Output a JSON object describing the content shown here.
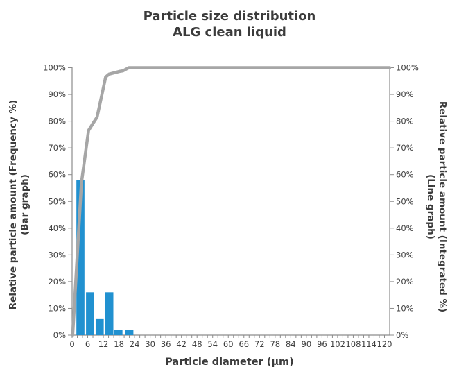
{
  "title": {
    "line1": "Particle size distribution",
    "line2": "ALG clean liquid"
  },
  "axes": {
    "x_title": "Particle diameter (μm)",
    "y_left_title_line1": "Relative particle amount (Frequency %)",
    "y_left_title_line2": "(Bar graph)",
    "y_right_title_line1": "Relative particle amount (Integrated %)",
    "y_right_title_line2": "(Line graph)"
  },
  "chart_data": {
    "type": "combo-bar-line",
    "title": "Particle size distribution ALG clean liquid",
    "xlabel": "Particle diameter (μm)",
    "ylabel_left": "Relative particle amount (Frequency %) (Bar graph)",
    "ylabel_right": "Relative particle amount (Integrated %) (Line graph)",
    "xlim": [
      0,
      122
    ],
    "ylim_pct": [
      0,
      100
    ],
    "x_tick_labels": [
      0,
      6,
      12,
      18,
      24,
      30,
      36,
      42,
      48,
      54,
      60,
      66,
      72,
      78,
      84,
      90,
      96,
      102,
      108,
      114,
      120
    ],
    "x_minor_tick_step_um": 2,
    "y_tick_step_pct": 10,
    "y_tick_suffix": "%",
    "grid": false,
    "legend": false,
    "bar_series": {
      "name": "Relative particle amount (Frequency %)",
      "diameter_um": [
        3.2,
        6.9,
        10.6,
        14.3,
        17.8,
        22.0
      ],
      "frequency_pct": [
        58,
        16,
        6,
        16,
        2,
        2
      ],
      "bar_width_um": 3.1,
      "color": "#2191D0"
    },
    "line_series": {
      "name": "Relative particle amount (Integrated %)",
      "x_um": [
        0.2,
        3.6,
        6.3,
        7.9,
        9.6,
        12.9,
        14.2,
        18.2,
        19.5,
        21.8,
        122
      ],
      "integrated_pct": [
        0,
        57,
        76.5,
        79,
        81.5,
        96.5,
        97.6,
        98.6,
        98.8,
        100,
        100
      ],
      "color": "#A6A6A6"
    }
  },
  "colors": {
    "background": "#FFFFFF",
    "axis_line": "#8C8C8C",
    "tick_label": "#404040",
    "title_text": "#3B3B3B"
  }
}
